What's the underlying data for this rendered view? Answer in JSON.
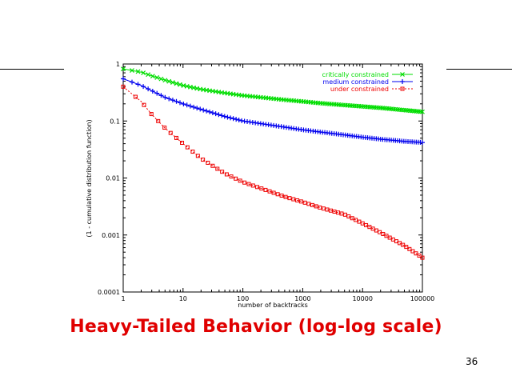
{
  "slide": {
    "caption": "Heavy-Tailed Behavior (log-log scale)",
    "page_number": "36"
  },
  "chart_data": {
    "type": "line",
    "title": "",
    "xlabel": "number of backtracks",
    "ylabel": "(1 - cumulative distribution function)",
    "xscale": "log",
    "yscale": "log",
    "xlim": [
      1,
      100000
    ],
    "ylim": [
      0.0001,
      1
    ],
    "x_ticks": [
      1,
      10,
      100,
      1000,
      10000,
      100000
    ],
    "x_tick_labels": [
      "1",
      "10",
      "100",
      "1000",
      "10000",
      "100000"
    ],
    "y_ticks": [
      0.0001,
      0.001,
      0.01,
      0.1,
      1
    ],
    "y_tick_labels": [
      "0.0001",
      "0.001",
      "0.01",
      "0.1",
      "1"
    ],
    "legend_position": "top-right",
    "series": [
      {
        "name": "critically constrained",
        "color": "#00dd00",
        "marker": "cross",
        "x": [
          1,
          2,
          3,
          5,
          10,
          20,
          50,
          100,
          200,
          500,
          1000,
          2000,
          5000,
          10000,
          20000,
          50000,
          100000
        ],
        "y": [
          0.82,
          0.72,
          0.62,
          0.52,
          0.42,
          0.36,
          0.31,
          0.28,
          0.26,
          0.235,
          0.22,
          0.205,
          0.19,
          0.18,
          0.17,
          0.155,
          0.145
        ]
      },
      {
        "name": "medium constrained",
        "color": "#0000ee",
        "marker": "plus",
        "x": [
          1,
          2,
          3,
          5,
          10,
          20,
          50,
          100,
          200,
          500,
          1000,
          2000,
          5000,
          10000,
          20000,
          50000,
          100000
        ],
        "y": [
          0.55,
          0.42,
          0.34,
          0.26,
          0.2,
          0.16,
          0.12,
          0.1,
          0.09,
          0.078,
          0.07,
          0.064,
          0.057,
          0.052,
          0.048,
          0.044,
          0.042
        ]
      },
      {
        "name": "under constrained",
        "color": "#ee0000",
        "marker": "square",
        "x": [
          1,
          2,
          3,
          5,
          10,
          20,
          50,
          100,
          200,
          500,
          1000,
          2000,
          5000,
          10000,
          20000,
          50000,
          100000
        ],
        "y": [
          0.4,
          0.22,
          0.13,
          0.075,
          0.04,
          0.022,
          0.012,
          0.0085,
          0.0066,
          0.0047,
          0.0038,
          0.003,
          0.0023,
          0.0016,
          0.0011,
          0.00065,
          0.0004
        ]
      }
    ]
  }
}
